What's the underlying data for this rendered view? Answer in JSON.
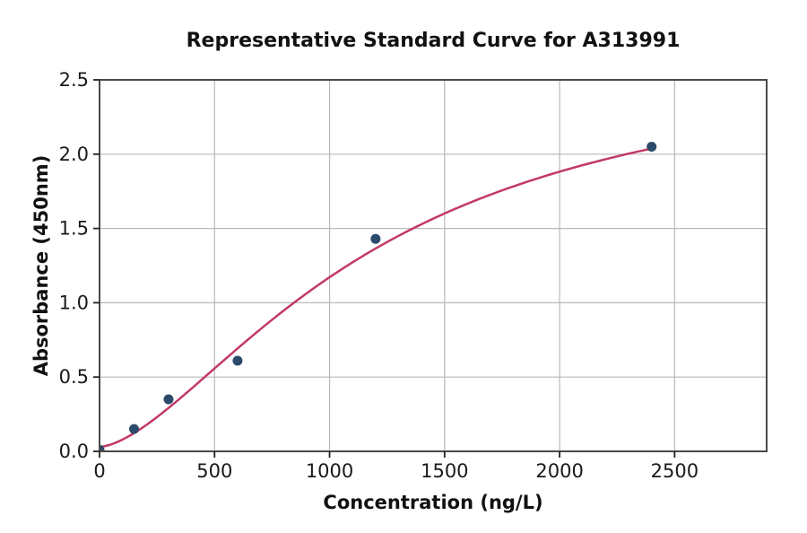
{
  "chart_data": {
    "type": "scatter",
    "title": "Representative Standard Curve for A313991",
    "xlabel": "Concentration (ng/L)",
    "ylabel": "Absorbance (450nm)",
    "xlim": [
      0,
      2900
    ],
    "ylim": [
      0,
      2.5
    ],
    "xticks": [
      0,
      500,
      1000,
      1500,
      2000,
      2500
    ],
    "xtick_labels": [
      "0",
      "500",
      "1000",
      "1500",
      "2000",
      "2500"
    ],
    "yticks": [
      0,
      0.5,
      1.0,
      1.5,
      2.0,
      2.5
    ],
    "ytick_labels": [
      "0.0",
      "0.5",
      "1.0",
      "1.5",
      "2.0",
      "2.5"
    ],
    "grid": true,
    "legend": "none",
    "colors": {
      "point": "#2c4a6a",
      "curve": "#c23a64",
      "gridline": "#b8b8b8",
      "spine": "#4a4a4a",
      "tick": "#222222"
    },
    "series": [
      {
        "name": "standard-points",
        "type": "scatter",
        "x": [
          0,
          150,
          300,
          600,
          1200,
          2400
        ],
        "y": [
          0.01,
          0.15,
          0.35,
          0.61,
          1.43,
          2.05
        ],
        "marker_radius": 5.5
      },
      {
        "name": "4pl-fit-curve",
        "type": "line",
        "width": 2.5,
        "fit": {
          "model": "4PL",
          "a": 0.03,
          "b": 1.6,
          "c": 1200,
          "d": 2.7,
          "x_range": [
            0,
            2400
          ]
        }
      }
    ]
  }
}
